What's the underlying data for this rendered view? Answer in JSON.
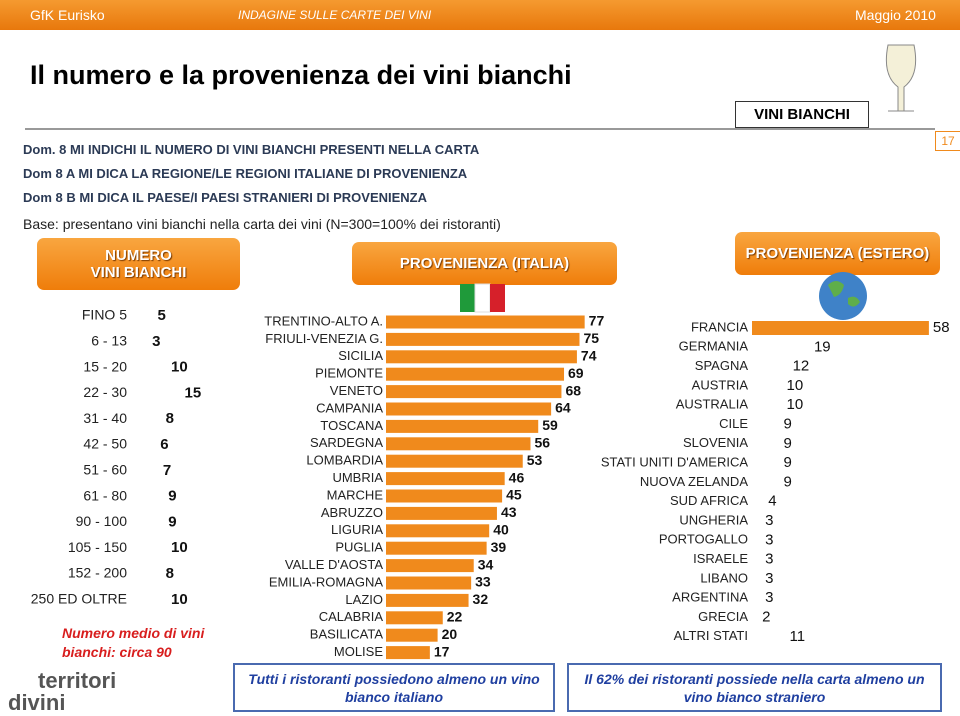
{
  "header": {
    "brand": "GfK Eurisko",
    "survey": "INDAGINE SULLE CARTE DEI VINI",
    "date": "Maggio 2010"
  },
  "title": "Il numero e la provenienza dei vini bianchi",
  "tag": "VINI BIANCHI",
  "page_number": "17",
  "questions": [
    "Dom. 8 MI INDICHI IL NUMERO DI VINI BIANCHI PRESENTI NELLA CARTA",
    "Dom 8 A MI DICA LA REGIONE/LE REGIONI ITALIANE DI PROVENIENZA",
    "Dom 8 B MI DICA IL PAESE/I PAESI STRANIERI DI PROVENIENZA"
  ],
  "base": "Base: presentano vini bianchi nella carta dei vini (N=300=100% dei ristoranti)",
  "logo": [
    "territori",
    "divini"
  ],
  "chart_data": [
    {
      "type": "bar",
      "orientation": "horizontal",
      "title": "NUMERO\nVINI BIANCHI",
      "color": "#ffffff",
      "categories": [
        "FINO 5",
        "6 - 13",
        "15 - 20",
        "22 - 30",
        "31 - 40",
        "42 - 50",
        "51 - 60",
        "61 - 80",
        "90 - 100",
        "105 - 150",
        "152 - 200",
        "250 ED OLTRE"
      ],
      "values": [
        5,
        3,
        10,
        15,
        8,
        6,
        7,
        9,
        9,
        10,
        8,
        10
      ],
      "note": "Numero medio di vini bianchi: circa 90"
    },
    {
      "type": "bar",
      "orientation": "horizontal",
      "title": "PROVENIENZA (ITALIA)",
      "color": "#f08a1c",
      "categories": [
        "TRENTINO-ALTO A.",
        "FRIULI-VENEZIA G.",
        "SICILIA",
        "PIEMONTE",
        "VENETO",
        "CAMPANIA",
        "TOSCANA",
        "SARDEGNA",
        "LOMBARDIA",
        "UMBRIA",
        "MARCHE",
        "ABRUZZO",
        "LIGURIA",
        "PUGLIA",
        "VALLE D'AOSTA",
        "EMILIA-ROMAGNA",
        "LAZIO",
        "CALABRIA",
        "BASILICATA",
        "MOLISE"
      ],
      "values": [
        77,
        75,
        74,
        69,
        68,
        64,
        59,
        56,
        53,
        46,
        45,
        43,
        40,
        39,
        34,
        33,
        32,
        22,
        20,
        17
      ],
      "note": "Tutti i ristoranti possiedono almeno un vino bianco italiano"
    },
    {
      "type": "bar",
      "orientation": "horizontal",
      "title": "PROVENIENZA (ESTERO)",
      "colors": [
        "#f08a1c",
        "#ffffff",
        "#ffffff",
        "#ffffff",
        "#ffffff",
        "#ffffff",
        "#ffffff",
        "#ffffff",
        "#ffffff",
        "#ffffff",
        "#ffffff",
        "#ffffff",
        "#ffffff",
        "#ffffff",
        "#ffffff",
        "#ffffff",
        "#ffffff"
      ],
      "categories": [
        "FRANCIA",
        "GERMANIA",
        "SPAGNA",
        "AUSTRIA",
        "AUSTRALIA",
        "CILE",
        "SLOVENIA",
        "STATI UNITI D'AMERICA",
        "NUOVA ZELANDA",
        "SUD AFRICA",
        "UNGHERIA",
        "PORTOGALLO",
        "ISRAELE",
        "LIBANO",
        "ARGENTINA",
        "GRECIA",
        "ALTRI STATI"
      ],
      "values": [
        58,
        19,
        12,
        10,
        10,
        9,
        9,
        9,
        9,
        4,
        3,
        3,
        3,
        3,
        3,
        2,
        11
      ],
      "note": "Il 62% dei ristoranti possiede nella carta almeno un vino bianco straniero"
    }
  ]
}
